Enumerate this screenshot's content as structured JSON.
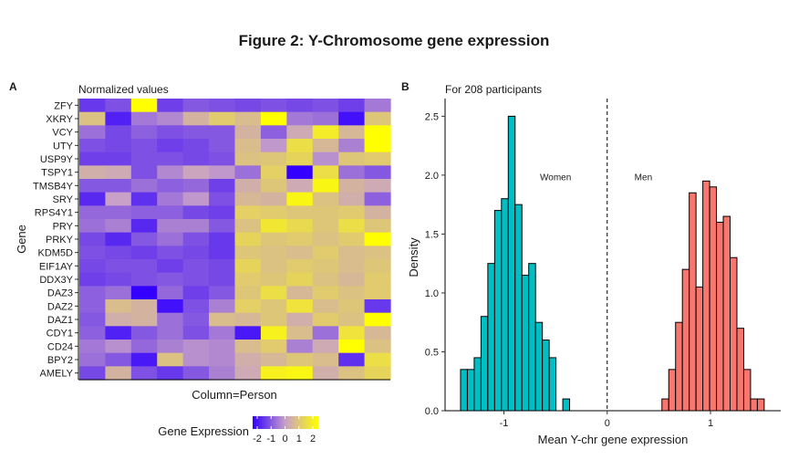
{
  "figure_title": "Figure 2: Y-Chromosome gene expression",
  "panel_a": {
    "tag": "A",
    "subtitle": "Normalized values",
    "xlabel": "Column=Person",
    "ylabel": "Gene",
    "legend": {
      "title": "Gene Expression",
      "ticks": [
        "-2",
        "-1",
        "0",
        "1",
        "2"
      ]
    }
  },
  "panel_b": {
    "tag": "B",
    "subtitle": "For 208 participants",
    "xlabel": "Mean Y-chr gene expression",
    "ylabel": "Density",
    "label_women": "Women",
    "label_men": "Men",
    "x_ticks": [
      "-1",
      "0",
      "1"
    ],
    "y_ticks": [
      "0.0",
      "0.5",
      "1.0",
      "1.5",
      "2.0",
      "2.5"
    ]
  },
  "colors": {
    "heat_low": "#3300ff",
    "heat_mid": "#c8a0c8",
    "heat_high": "#ffff00",
    "women": "#00bfc4",
    "men": "#f8766d"
  },
  "chart_data": [
    {
      "type": "heatmap",
      "rows": [
        "ZFY",
        "XKRY",
        "VCY",
        "UTY",
        "USP9Y",
        "TSPY1",
        "TMSB4Y",
        "SRY",
        "RPS4Y1",
        "PRY",
        "PRKY",
        "KDM5D",
        "EIF1AY",
        "DDX3Y",
        "DAZ3",
        "DAZ2",
        "DAZ1",
        "CDY1",
        "CD24",
        "BPY2",
        "AMELY"
      ],
      "n_columns": 12,
      "value_range": [
        -2,
        2
      ],
      "values": [
        [
          -1.3,
          -1.0,
          2.3,
          -1.2,
          -0.9,
          -1.0,
          -1.1,
          -1.0,
          -1.1,
          -1.0,
          -1.2,
          -0.5
        ],
        [
          0.7,
          -1.6,
          -0.5,
          -0.3,
          0.4,
          0.9,
          0.6,
          2.0,
          -0.5,
          -0.6,
          -1.8,
          0.8
        ],
        [
          -0.6,
          -1.1,
          -0.8,
          -1.0,
          -0.9,
          -0.9,
          0.4,
          -0.8,
          0.2,
          1.6,
          0.5,
          2.0
        ],
        [
          -1.0,
          -1.1,
          -1.0,
          -1.2,
          -1.1,
          -0.9,
          0.6,
          -0.1,
          1.3,
          0.5,
          -0.4,
          2.3
        ],
        [
          -1.2,
          -1.2,
          -1.0,
          -1.0,
          -1.1,
          -1.0,
          0.7,
          0.8,
          1.1,
          -0.2,
          0.8,
          0.9
        ],
        [
          0.3,
          0.2,
          -1.0,
          -0.3,
          0.1,
          -0.1,
          -0.6,
          1.0,
          -2.2,
          1.3,
          -0.6,
          -0.9
        ],
        [
          -0.9,
          -0.9,
          -0.6,
          -0.8,
          -0.7,
          -1.2,
          0.3,
          0.8,
          0.2,
          1.8,
          0.4,
          0.2
        ],
        [
          -1.5,
          0.0,
          -1.4,
          -0.5,
          -0.1,
          -1.0,
          0.5,
          0.4,
          1.8,
          0.7,
          0.3,
          -0.8
        ],
        [
          -0.7,
          -0.7,
          -0.8,
          -0.8,
          -1.1,
          -1.2,
          1.0,
          0.9,
          0.8,
          0.8,
          0.9,
          0.4
        ],
        [
          -0.6,
          -0.4,
          -1.5,
          -0.4,
          -0.4,
          -0.9,
          0.7,
          1.5,
          1.2,
          0.8,
          1.3,
          0.8
        ],
        [
          -1.1,
          -1.5,
          -0.9,
          -0.6,
          -1.0,
          -1.3,
          1.1,
          0.8,
          0.9,
          0.7,
          0.9,
          2.3
        ],
        [
          -1.0,
          -1.1,
          -1.2,
          -1.0,
          -1.1,
          -1.3,
          0.8,
          0.7,
          0.6,
          0.9,
          0.6,
          0.7
        ],
        [
          -1.1,
          -1.0,
          -1.0,
          -1.2,
          -1.0,
          -1.1,
          1.1,
          0.7,
          0.9,
          0.8,
          0.6,
          0.8
        ],
        [
          -1.2,
          -1.1,
          -1.0,
          -0.9,
          -1.0,
          -1.1,
          0.9,
          0.8,
          1.1,
          0.7,
          0.5,
          0.9
        ],
        [
          -0.8,
          -0.6,
          -2.6,
          -0.7,
          -1.2,
          -0.9,
          0.8,
          1.3,
          0.5,
          0.9,
          0.7,
          0.9
        ],
        [
          -0.8,
          0.6,
          0.4,
          -1.8,
          -1.0,
          -0.4,
          1.0,
          0.8,
          1.4,
          0.6,
          0.8,
          -1.3
        ],
        [
          -0.9,
          0.3,
          0.4,
          -0.6,
          -0.9,
          0.6,
          0.5,
          0.8,
          0.3,
          0.9,
          0.7,
          2.4
        ],
        [
          -0.8,
          -1.6,
          -0.9,
          -0.6,
          -1.0,
          -0.5,
          -1.7,
          1.7,
          0.6,
          -0.6,
          1.4,
          0.5
        ],
        [
          -0.5,
          -0.2,
          -0.7,
          -0.4,
          -0.2,
          -0.3,
          0.6,
          0.9,
          -0.4,
          0.2,
          2.3,
          0.7
        ],
        [
          -0.6,
          -0.9,
          -1.7,
          0.7,
          -0.2,
          -0.3,
          0.3,
          0.5,
          0.8,
          0.6,
          -1.4,
          1.3
        ],
        [
          -1.1,
          0.4,
          -1.0,
          -1.3,
          -0.9,
          -0.4,
          0.2,
          1.7,
          1.8,
          0.3,
          0.7,
          1.1
        ]
      ]
    },
    {
      "type": "bar",
      "subtype": "histogram",
      "bin_width": 0.066,
      "xlim": [
        -1.57,
        1.68
      ],
      "ylim": [
        0,
        2.65
      ],
      "cutoff_x": 0,
      "series": [
        {
          "name": "Women",
          "bin_starts": [
            -1.42,
            -1.354,
            -1.288,
            -1.222,
            -1.156,
            -1.09,
            -1.024,
            -0.958,
            -0.892,
            -0.826,
            -0.76,
            -0.694,
            -0.628,
            -0.562,
            -0.496,
            -0.43
          ],
          "values": [
            0.35,
            0.35,
            0.45,
            0.8,
            1.25,
            1.7,
            1.8,
            2.5,
            1.75,
            1.15,
            1.25,
            0.75,
            0.6,
            0.45,
            0.0,
            0.1
          ]
        },
        {
          "name": "Men",
          "bin_starts": [
            0.53,
            0.596,
            0.662,
            0.728,
            0.794,
            0.86,
            0.926,
            0.992,
            1.058,
            1.124,
            1.19,
            1.256,
            1.322,
            1.388,
            1.454
          ],
          "values": [
            0.1,
            0.35,
            0.75,
            1.2,
            1.85,
            1.05,
            1.95,
            1.9,
            1.6,
            1.65,
            1.3,
            0.7,
            0.35,
            0.1,
            0.1
          ]
        }
      ]
    }
  ]
}
